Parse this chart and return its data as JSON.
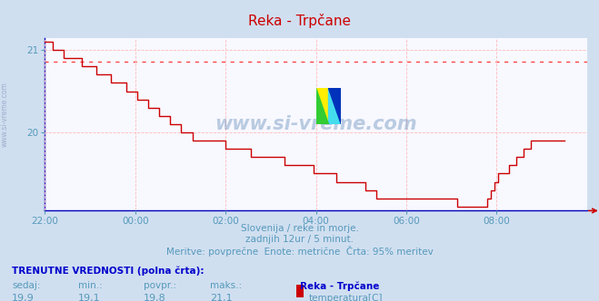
{
  "title": "Reka - Trpčane",
  "bg_color": "#d0dff0",
  "plot_bg_color": "#f8f8ff",
  "grid_color": "#ffbbbb",
  "line_color": "#cc0000",
  "avg_line_color": "#ff4444",
  "avg_line_value": 20.86,
  "y_min": 19.05,
  "y_max": 21.15,
  "y_ticks": [
    20,
    21
  ],
  "x_labels": [
    "22:00",
    "00:00",
    "02:00",
    "04:00",
    "06:00",
    "08:00"
  ],
  "x_tick_pos": [
    0,
    2,
    4,
    6,
    8,
    10
  ],
  "subtitle1": "Slovenija / reke in morje.",
  "subtitle2": "zadnjih 12ur / 5 minut.",
  "subtitle3": "Meritve: povprečne  Enote: metrične  Črta: 95% meritev",
  "footer_bold": "TRENUTNE VREDNOSTI (polna črta):",
  "footer_col_labels": [
    "sedaj:",
    "min.:",
    "povpr.:",
    "maks.:"
  ],
  "footer_col_values": [
    "19,9",
    "19,1",
    "19,8",
    "21,1"
  ],
  "footer_station": "Reka - Trpčane",
  "footer_series": "temperatura[C]",
  "footer_series_color": "#cc0000",
  "watermark": "www.si-vreme.com",
  "watermark_color": "#4477aa",
  "left_label": "www.si-vreme.com",
  "temp_values": [
    21.1,
    21.1,
    21.0,
    21.0,
    21.0,
    20.9,
    20.9,
    20.9,
    20.9,
    20.9,
    20.8,
    20.8,
    20.8,
    20.8,
    20.7,
    20.7,
    20.7,
    20.7,
    20.6,
    20.6,
    20.6,
    20.6,
    20.5,
    20.5,
    20.5,
    20.4,
    20.4,
    20.4,
    20.3,
    20.3,
    20.3,
    20.2,
    20.2,
    20.2,
    20.1,
    20.1,
    20.1,
    20.0,
    20.0,
    20.0,
    19.9,
    19.9,
    19.9,
    19.9,
    19.9,
    19.9,
    19.9,
    19.9,
    19.9,
    19.8,
    19.8,
    19.8,
    19.8,
    19.8,
    19.8,
    19.8,
    19.7,
    19.7,
    19.7,
    19.7,
    19.7,
    19.7,
    19.7,
    19.7,
    19.7,
    19.6,
    19.6,
    19.6,
    19.6,
    19.6,
    19.6,
    19.6,
    19.6,
    19.5,
    19.5,
    19.5,
    19.5,
    19.5,
    19.5,
    19.4,
    19.4,
    19.4,
    19.4,
    19.4,
    19.4,
    19.4,
    19.4,
    19.3,
    19.3,
    19.3,
    19.2,
    19.2,
    19.2,
    19.2,
    19.2,
    19.2,
    19.2,
    19.2,
    19.2,
    19.2,
    19.2,
    19.2,
    19.2,
    19.2,
    19.2,
    19.2,
    19.2,
    19.2,
    19.2,
    19.2,
    19.2,
    19.2,
    19.1,
    19.1,
    19.1,
    19.1,
    19.1,
    19.1,
    19.1,
    19.1,
    19.2,
    19.3,
    19.4,
    19.5,
    19.5,
    19.5,
    19.6,
    19.6,
    19.7,
    19.7,
    19.8,
    19.8,
    19.9,
    19.9,
    19.9,
    19.9,
    19.9,
    19.9,
    19.9,
    19.9,
    19.9,
    19.9
  ]
}
